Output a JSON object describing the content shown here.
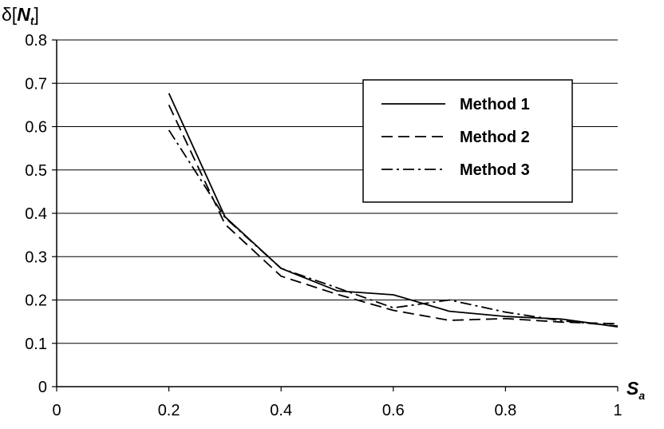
{
  "chart_data": {
    "type": "line",
    "xlabel": {
      "main": "S",
      "sub": "a"
    },
    "ylabel": {
      "prefix": "δ[",
      "main": "N",
      "sub": "t",
      "suffix": "]"
    },
    "xlim": [
      0,
      1
    ],
    "ylim": [
      0,
      0.8
    ],
    "xticks": [
      "0",
      "0.2",
      "0.4",
      "0.6",
      "0.8",
      "1"
    ],
    "yticks": [
      "0",
      "0.1",
      "0.2",
      "0.3",
      "0.4",
      "0.5",
      "0.6",
      "0.7",
      "0.8"
    ],
    "grid": "horizontal",
    "legend_position": "top-right",
    "series": [
      {
        "name": "Method 1",
        "style": "solid",
        "x": [
          0.2,
          0.3,
          0.4,
          0.5,
          0.6,
          0.7,
          0.8,
          0.9,
          1.0
        ],
        "y": [
          0.677,
          0.392,
          0.273,
          0.221,
          0.212,
          0.174,
          0.162,
          0.156,
          0.138
        ]
      },
      {
        "name": "Method 2",
        "style": "dashed",
        "x": [
          0.2,
          0.3,
          0.4,
          0.5,
          0.6,
          0.7,
          0.8,
          0.9,
          1.0
        ],
        "y": [
          0.65,
          0.375,
          0.255,
          0.213,
          0.176,
          0.153,
          0.157,
          0.149,
          0.145
        ]
      },
      {
        "name": "Method 3",
        "style": "dashdot",
        "x": [
          0.2,
          0.3,
          0.4,
          0.5,
          0.6,
          0.7,
          0.8,
          0.9,
          1.0
        ],
        "y": [
          0.592,
          0.39,
          0.273,
          0.228,
          0.182,
          0.2,
          0.172,
          0.152,
          0.14
        ]
      }
    ]
  }
}
